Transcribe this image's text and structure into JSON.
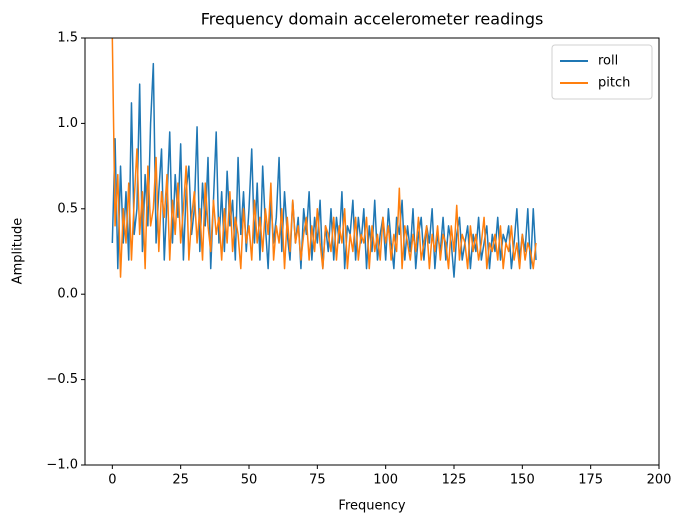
{
  "chart_data": {
    "type": "line",
    "title": "Frequency domain accelerometer readings",
    "x_label": "Frequency",
    "y_label": "Amplitude",
    "x": [
      0,
      1,
      2,
      3,
      4,
      5,
      6,
      7,
      8,
      9,
      10,
      11,
      12,
      13,
      14,
      15,
      16,
      17,
      18,
      19,
      20,
      21,
      22,
      23,
      24,
      25,
      26,
      27,
      28,
      29,
      30,
      31,
      32,
      33,
      34,
      35,
      36,
      37,
      38,
      39,
      40,
      41,
      42,
      43,
      44,
      45,
      46,
      47,
      48,
      49,
      50,
      51,
      52,
      53,
      54,
      55,
      56,
      57,
      58,
      59,
      60,
      61,
      62,
      63,
      64,
      65,
      66,
      67,
      68,
      69,
      70,
      71,
      72,
      73,
      74,
      75,
      76,
      77,
      78,
      79,
      80,
      81,
      82,
      83,
      84,
      85,
      86,
      87,
      88,
      89,
      90,
      91,
      92,
      93,
      94,
      95,
      96,
      97,
      98,
      99,
      100,
      101,
      102,
      103,
      104,
      105,
      106,
      107,
      108,
      109,
      110,
      111,
      112,
      113,
      114,
      115,
      116,
      117,
      118,
      119,
      120,
      121,
      122,
      123,
      124,
      125,
      126,
      127,
      128,
      129,
      130,
      131,
      132,
      133,
      134,
      135,
      136,
      137,
      138,
      139,
      140,
      141,
      142,
      143,
      144,
      145,
      146,
      147,
      148,
      149,
      150,
      151,
      152,
      153,
      154,
      155
    ],
    "series": [
      {
        "name": "roll",
        "color": "#1f77b4",
        "values": [
          0.3,
          0.91,
          0.15,
          0.75,
          0.3,
          0.6,
          0.2,
          1.12,
          0.35,
          0.5,
          1.23,
          0.25,
          0.7,
          0.4,
          1.0,
          1.35,
          0.3,
          0.6,
          0.85,
          0.2,
          0.55,
          0.95,
          0.3,
          0.7,
          0.45,
          0.88,
          0.2,
          0.6,
          0.75,
          0.35,
          0.5,
          0.98,
          0.25,
          0.65,
          0.4,
          0.8,
          0.15,
          0.55,
          0.95,
          0.3,
          0.6,
          0.25,
          0.72,
          0.4,
          0.55,
          0.2,
          0.8,
          0.35,
          0.6,
          0.25,
          0.5,
          0.85,
          0.3,
          0.65,
          0.2,
          0.75,
          0.4,
          0.15,
          0.55,
          0.3,
          0.45,
          0.8,
          0.25,
          0.6,
          0.35,
          0.2,
          0.55,
          0.3,
          0.45,
          0.15,
          0.5,
          0.35,
          0.6,
          0.2,
          0.45,
          0.3,
          0.55,
          0.15,
          0.4,
          0.25,
          0.5,
          0.2,
          0.45,
          0.3,
          0.6,
          0.15,
          0.4,
          0.35,
          0.55,
          0.2,
          0.45,
          0.3,
          0.5,
          0.15,
          0.4,
          0.25,
          0.55,
          0.2,
          0.35,
          0.45,
          0.2,
          0.5,
          0.3,
          0.15,
          0.45,
          0.35,
          0.55,
          0.2,
          0.4,
          0.25,
          0.5,
          0.15,
          0.35,
          0.45,
          0.2,
          0.4,
          0.3,
          0.5,
          0.15,
          0.35,
          0.25,
          0.45,
          0.2,
          0.4,
          0.3,
          0.1,
          0.35,
          0.45,
          0.2,
          0.3,
          0.4,
          0.15,
          0.35,
          0.25,
          0.45,
          0.2,
          0.3,
          0.4,
          0.15,
          0.35,
          0.25,
          0.45,
          0.2,
          0.35,
          0.3,
          0.4,
          0.15,
          0.3,
          0.5,
          0.2,
          0.35,
          0.25,
          0.5,
          0.15,
          0.5,
          0.2
        ]
      },
      {
        "name": "pitch",
        "color": "#ff7f0e",
        "values": [
          1.5,
          0.4,
          0.7,
          0.1,
          0.5,
          0.3,
          0.65,
          0.2,
          0.55,
          0.85,
          0.35,
          0.6,
          0.15,
          0.75,
          0.4,
          0.5,
          0.8,
          0.25,
          0.6,
          0.45,
          0.7,
          0.2,
          0.55,
          0.35,
          0.65,
          0.3,
          0.5,
          0.75,
          0.2,
          0.45,
          0.6,
          0.3,
          0.5,
          0.2,
          0.65,
          0.4,
          0.25,
          0.55,
          0.35,
          0.45,
          0.2,
          0.5,
          0.3,
          0.6,
          0.25,
          0.45,
          0.35,
          0.15,
          0.5,
          0.3,
          0.4,
          0.2,
          0.55,
          0.3,
          0.45,
          0.25,
          0.5,
          0.35,
          0.65,
          0.2,
          0.4,
          0.3,
          0.5,
          0.15,
          0.45,
          0.25,
          0.55,
          0.3,
          0.4,
          0.2,
          0.35,
          0.45,
          0.2,
          0.4,
          0.25,
          0.5,
          0.3,
          0.15,
          0.4,
          0.35,
          0.25,
          0.45,
          0.2,
          0.4,
          0.3,
          0.5,
          0.15,
          0.35,
          0.25,
          0.45,
          0.2,
          0.35,
          0.3,
          0.45,
          0.15,
          0.4,
          0.25,
          0.35,
          0.2,
          0.45,
          0.3,
          0.4,
          0.2,
          0.35,
          0.25,
          0.62,
          0.15,
          0.4,
          0.3,
          0.2,
          0.35,
          0.25,
          0.45,
          0.2,
          0.3,
          0.4,
          0.15,
          0.35,
          0.25,
          0.4,
          0.2,
          0.35,
          0.3,
          0.15,
          0.4,
          0.25,
          0.52,
          0.2,
          0.35,
          0.3,
          0.15,
          0.4,
          0.25,
          0.35,
          0.2,
          0.3,
          0.45,
          0.15,
          0.3,
          0.25,
          0.35,
          0.2,
          0.4,
          0.15,
          0.3,
          0.25,
          0.4,
          0.2,
          0.3,
          0.15,
          0.35,
          0.2,
          0.3,
          0.25,
          0.15,
          0.3
        ]
      }
    ],
    "xlim": [
      -10,
      200
    ],
    "xticks": [
      0,
      25,
      50,
      75,
      100,
      125,
      150,
      175,
      200
    ],
    "ylim": [
      -1,
      1.5
    ],
    "yticks": [
      {
        "value": -1,
        "label": "−1.0"
      },
      {
        "value": -0.5,
        "label": "−0.5"
      },
      {
        "value": 0,
        "label": "0.0"
      },
      {
        "value": 0.5,
        "label": "0.5"
      },
      {
        "value": 1,
        "label": "1.0"
      },
      {
        "value": 1.5,
        "label": "1.5"
      }
    ],
    "legend": "upper right"
  }
}
